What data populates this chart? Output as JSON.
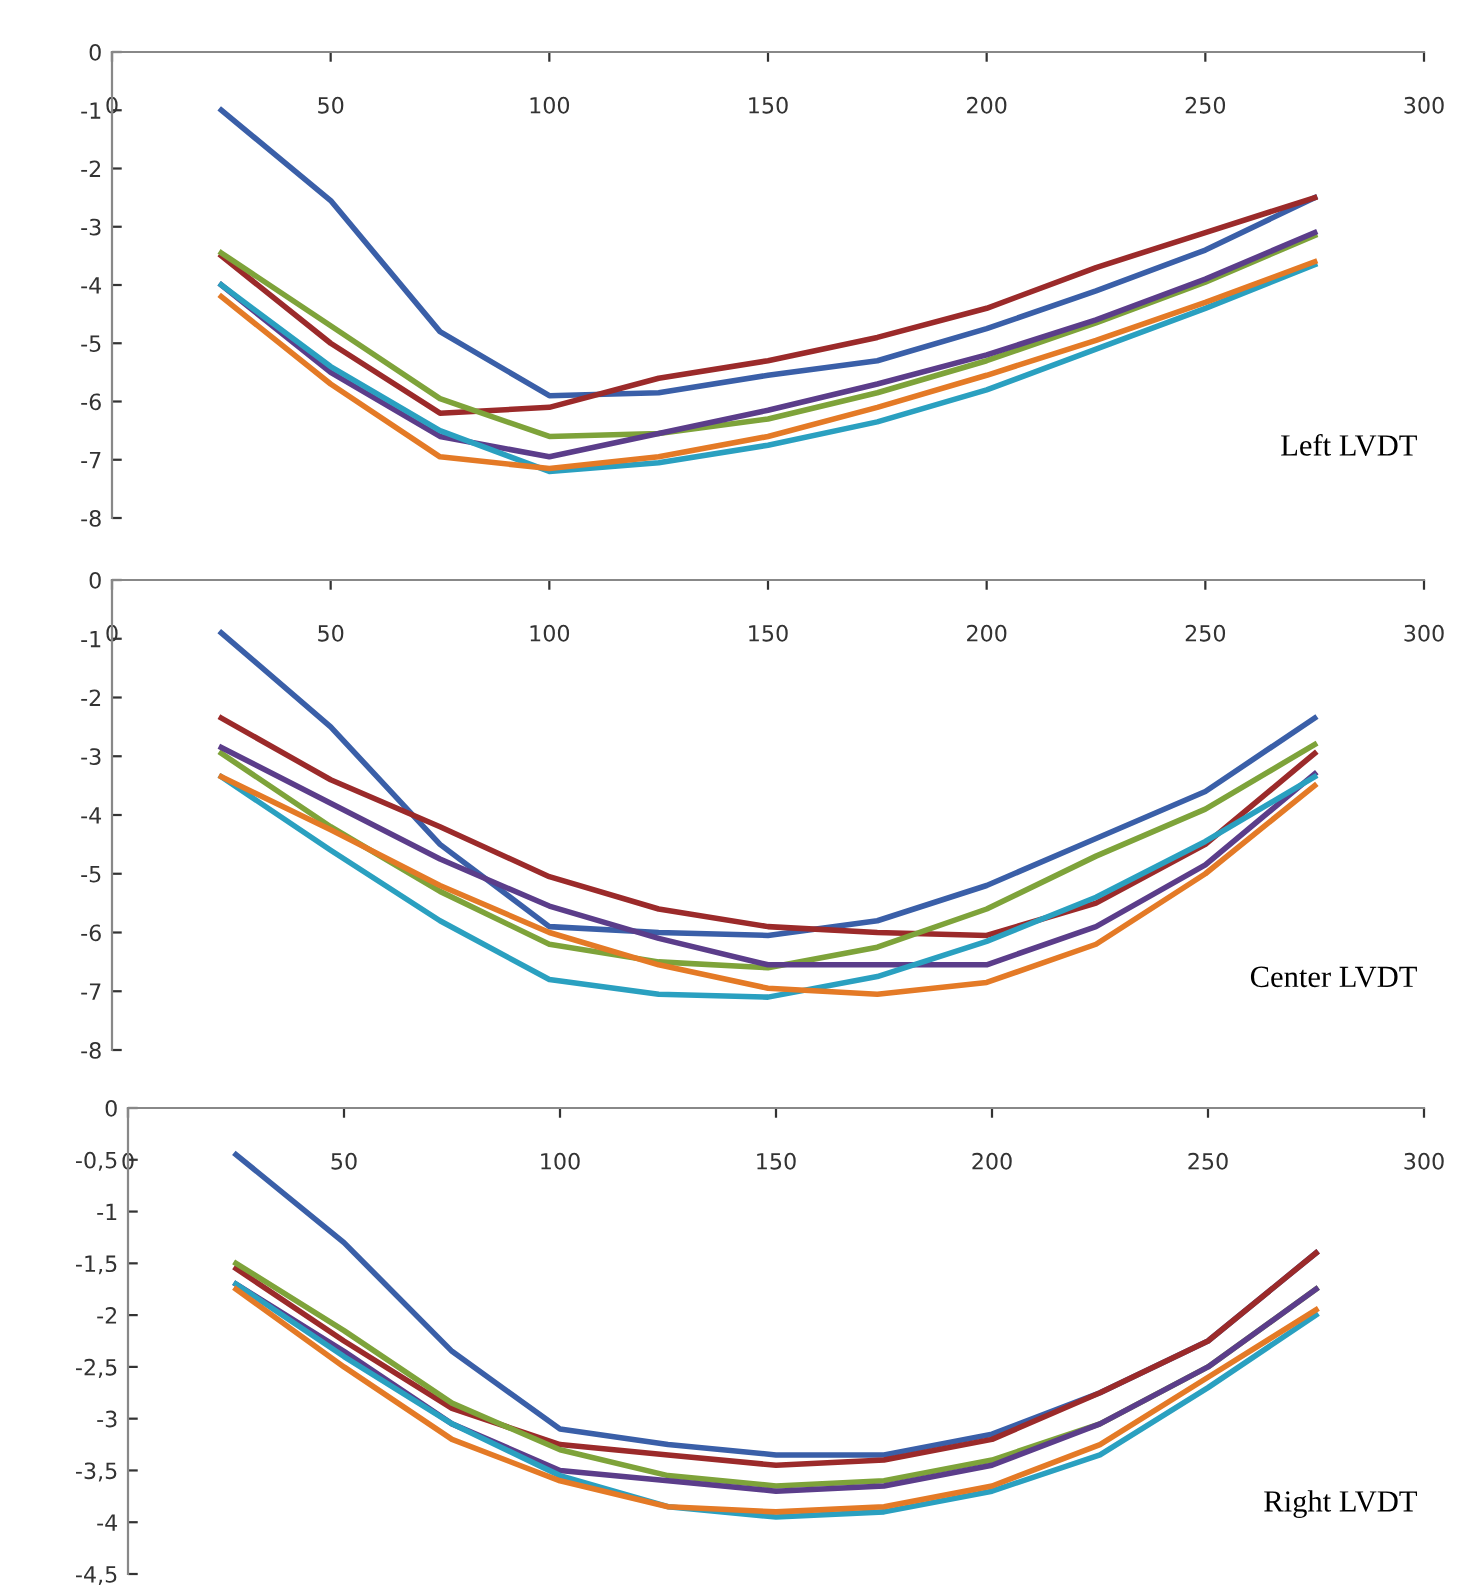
{
  "chart_data": [
    {
      "type": "line",
      "x": [
        25,
        50,
        75,
        100,
        125,
        150,
        175,
        200,
        225,
        250,
        275
      ],
      "xlim": [
        0,
        300
      ],
      "xticks": [
        0,
        50,
        100,
        150,
        200,
        250,
        300
      ],
      "ylim": [
        -8,
        0
      ],
      "yticks": [
        0,
        -1,
        -2,
        -3,
        -4,
        -5,
        -6,
        -7,
        -8
      ],
      "grid": false,
      "annotations": [
        "Left LVDT"
      ],
      "series": [
        {
          "color": "#3a5fa8",
          "values": [
            -1,
            -2.55,
            -4.8,
            -5.9,
            -5.85,
            -5.55,
            -5.3,
            -4.75,
            -4.1,
            -3.4,
            -2.5
          ]
        },
        {
          "color": "#9b2a2a",
          "values": [
            -3.5,
            -5.0,
            -6.2,
            -6.1,
            -5.6,
            -5.3,
            -4.9,
            -4.4,
            -3.7,
            -3.1,
            -2.5
          ]
        },
        {
          "color": "#7ea33a",
          "values": [
            -3.45,
            -4.7,
            -5.95,
            -6.6,
            -6.55,
            -6.3,
            -5.85,
            -5.3,
            -4.65,
            -3.95,
            -3.15
          ]
        },
        {
          "color": "#5b3d8a",
          "values": [
            -4.0,
            -5.5,
            -6.6,
            -6.95,
            -6.55,
            -6.15,
            -5.7,
            -5.2,
            -4.6,
            -3.9,
            -3.1
          ]
        },
        {
          "color": "#2aa0c0",
          "values": [
            -4.0,
            -5.4,
            -6.5,
            -7.2,
            -7.05,
            -6.75,
            -6.35,
            -5.8,
            -5.1,
            -4.4,
            -3.65
          ]
        },
        {
          "color": "#e47a26",
          "values": [
            -4.2,
            -5.7,
            -6.95,
            -7.15,
            -6.95,
            -6.6,
            -6.1,
            -5.55,
            -4.95,
            -4.3,
            -3.6
          ]
        }
      ]
    },
    {
      "type": "line",
      "x": [
        25,
        50,
        75,
        100,
        125,
        150,
        175,
        200,
        225,
        250,
        275
      ],
      "xlim": [
        0,
        300
      ],
      "xticks": [
        0,
        50,
        100,
        150,
        200,
        250,
        300
      ],
      "ylim": [
        -8,
        0
      ],
      "yticks": [
        0,
        -1,
        -2,
        -3,
        -4,
        -5,
        -6,
        -7,
        -8
      ],
      "grid": false,
      "annotations": [
        "Center LVDT"
      ],
      "series": [
        {
          "color": "#3a5fa8",
          "values": [
            -0.9,
            -2.5,
            -4.5,
            -5.9,
            -6.0,
            -6.05,
            -5.8,
            -5.2,
            -4.4,
            -3.6,
            -2.35
          ]
        },
        {
          "color": "#9b2a2a",
          "values": [
            -2.35,
            -3.4,
            -4.2,
            -5.05,
            -5.6,
            -5.9,
            -6.0,
            -6.05,
            -5.5,
            -4.5,
            -2.95
          ]
        },
        {
          "color": "#7ea33a",
          "values": [
            -2.95,
            -4.2,
            -5.3,
            -6.2,
            -6.5,
            -6.6,
            -6.25,
            -5.6,
            -4.7,
            -3.9,
            -2.8
          ]
        },
        {
          "color": "#5b3d8a",
          "values": [
            -2.85,
            -3.8,
            -4.75,
            -5.55,
            -6.1,
            -6.55,
            -6.55,
            -6.55,
            -5.9,
            -4.85,
            -3.3
          ]
        },
        {
          "color": "#2aa0c0",
          "values": [
            -3.35,
            -4.6,
            -5.8,
            -6.8,
            -7.05,
            -7.1,
            -6.75,
            -6.15,
            -5.4,
            -4.45,
            -3.35
          ]
        },
        {
          "color": "#e47a26",
          "values": [
            -3.35,
            -4.25,
            -5.2,
            -6.0,
            -6.55,
            -6.95,
            -7.05,
            -6.85,
            -6.2,
            -5.0,
            -3.5
          ]
        }
      ]
    },
    {
      "type": "line",
      "x": [
        25,
        50,
        75,
        100,
        125,
        150,
        175,
        200,
        225,
        250,
        275
      ],
      "xlim": [
        0,
        300
      ],
      "xticks": [
        0,
        50,
        100,
        150,
        200,
        250,
        300
      ],
      "ylim": [
        -4.5,
        0
      ],
      "yticks": [
        0,
        {
          "value": -0.5,
          "label": "-0,5"
        },
        -1,
        {
          "value": -1.5,
          "label": "-1,5"
        },
        -2,
        {
          "value": -2.5,
          "label": "-2,5"
        },
        -3,
        {
          "value": -3.5,
          "label": "-3,5"
        },
        -4,
        {
          "value": -4.5,
          "label": "-4,5"
        }
      ],
      "grid": false,
      "annotations": [
        "Right LVDT"
      ],
      "series": [
        {
          "color": "#3a5fa8",
          "values": [
            -0.45,
            -1.3,
            -2.35,
            -3.1,
            -3.25,
            -3.35,
            -3.35,
            -3.15,
            -2.75,
            -2.25,
            -1.4
          ]
        },
        {
          "color": "#9b2a2a",
          "values": [
            -1.55,
            -2.25,
            -2.9,
            -3.25,
            -3.35,
            -3.45,
            -3.4,
            -3.2,
            -2.75,
            -2.25,
            -1.4
          ]
        },
        {
          "color": "#7ea33a",
          "values": [
            -1.5,
            -2.15,
            -2.85,
            -3.3,
            -3.55,
            -3.65,
            -3.6,
            -3.4,
            -3.05,
            -2.5,
            -1.75
          ]
        },
        {
          "color": "#5b3d8a",
          "values": [
            -1.7,
            -2.35,
            -3.05,
            -3.5,
            -3.6,
            -3.7,
            -3.65,
            -3.45,
            -3.05,
            -2.5,
            -1.75
          ]
        },
        {
          "color": "#2aa0c0",
          "values": [
            -1.7,
            -2.4,
            -3.05,
            -3.55,
            -3.85,
            -3.95,
            -3.9,
            -3.7,
            -3.35,
            -2.7,
            -2.0
          ]
        },
        {
          "color": "#e47a26",
          "values": [
            -1.75,
            -2.5,
            -3.2,
            -3.6,
            -3.85,
            -3.9,
            -3.85,
            -3.65,
            -3.25,
            -2.6,
            -1.95
          ]
        }
      ]
    }
  ]
}
